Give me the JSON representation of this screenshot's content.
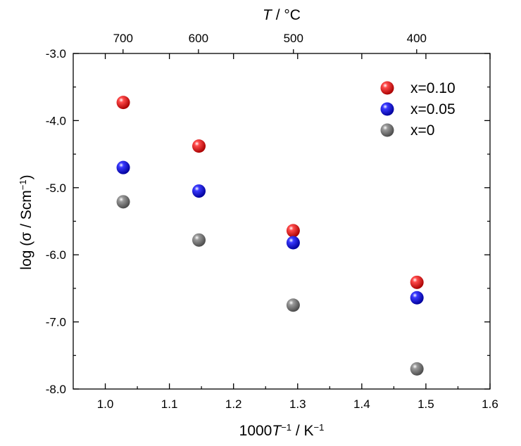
{
  "chart_data": {
    "type": "scatter",
    "xlabel": {
      "pre": "1000",
      "italic": "T",
      "sup1": "−1",
      "post": " / K",
      "sup2": "−1"
    },
    "ylabel": {
      "pre": "log (σ / Scm",
      "sup": "−1",
      "post": ")"
    },
    "top_axis_label": {
      "italic": "T",
      "post": " / °C"
    },
    "xlim": [
      0.95,
      1.6
    ],
    "ylim": [
      -8.0,
      -3.0
    ],
    "x_ticks": [
      1.0,
      1.1,
      1.2,
      1.3,
      1.4,
      1.5,
      1.6
    ],
    "x_tick_labels": [
      "1.0",
      "1.1",
      "1.2",
      "1.3",
      "1.4",
      "1.5",
      "1.6"
    ],
    "y_ticks": [
      -3.0,
      -4.0,
      -5.0,
      -6.0,
      -7.0,
      -8.0
    ],
    "y_tick_labels": [
      "-3.0",
      "-4.0",
      "-5.0",
      "-6.0",
      "-7.0",
      "-8.0"
    ],
    "top_ticks": [
      {
        "label": "700",
        "x": 1.0277
      },
      {
        "label": "600",
        "x": 1.1453
      },
      {
        "label": "500",
        "x": 1.2934
      },
      {
        "label": "400",
        "x": 1.4856
      }
    ],
    "legend_position": "top-right",
    "series": [
      {
        "name": "x=0.10",
        "color": "#ee0000",
        "x": [
          1.028,
          1.146,
          1.293,
          1.486
        ],
        "y": [
          -3.73,
          -4.38,
          -5.64,
          -6.41
        ]
      },
      {
        "name": "x=0.05",
        "color": "#0000ee",
        "x": [
          1.028,
          1.146,
          1.293,
          1.486
        ],
        "y": [
          -4.7,
          -5.05,
          -5.82,
          -6.64
        ]
      },
      {
        "name": "x=0",
        "color": "#888888",
        "x": [
          1.028,
          1.146,
          1.293,
          1.486
        ],
        "y": [
          -5.21,
          -5.78,
          -6.75,
          -7.7
        ]
      }
    ]
  }
}
